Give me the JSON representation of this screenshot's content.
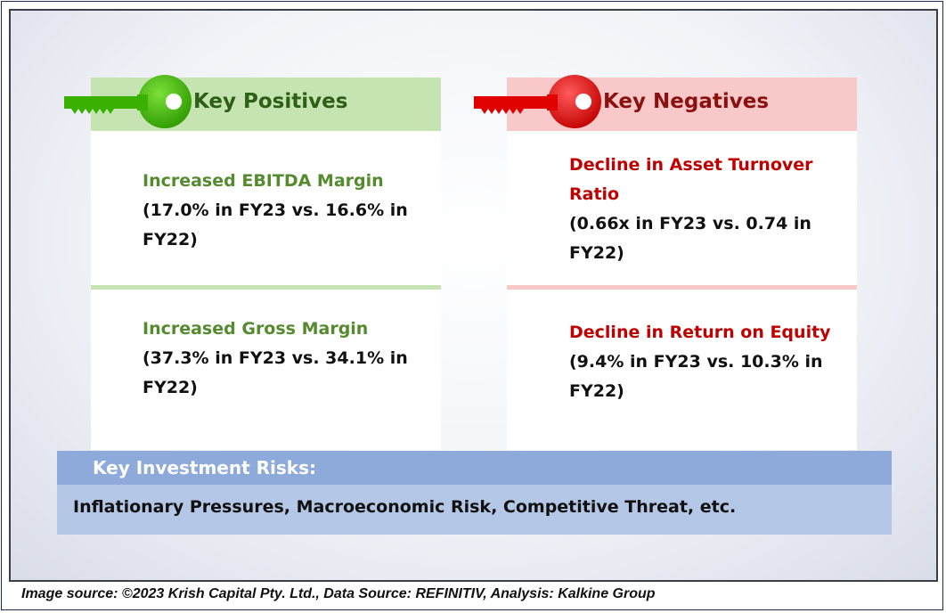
{
  "positives": {
    "title": "Key Positives",
    "accent_color": "#3ab000",
    "items": [
      {
        "title": "Increased EBITDA Margin",
        "detail": "(17.0% in FY23 vs. 16.6% in FY22)"
      },
      {
        "title": "Increased Gross Margin",
        "detail": "(37.3% in FY23 vs. 34.1% in FY22)"
      }
    ]
  },
  "negatives": {
    "title": "Key Negatives",
    "accent_color": "#e00000",
    "items": [
      {
        "title": "Decline in Asset Turnover Ratio",
        "detail": "(0.66x in FY23 vs. 0.74 in FY22)"
      },
      {
        "title": "Decline in Return on Equity",
        "detail": "(9.4% in FY23 vs. 10.3% in FY22)"
      }
    ]
  },
  "risks": {
    "title": "Key Investment Risks:",
    "text": "Inflationary Pressures, Macroeconomic Risk, Competitive Threat, etc."
  },
  "footer": "Image source: ©2023 Krish Capital Pty. Ltd., Data Source: REFINITIV, Analysis: Kalkine Group"
}
